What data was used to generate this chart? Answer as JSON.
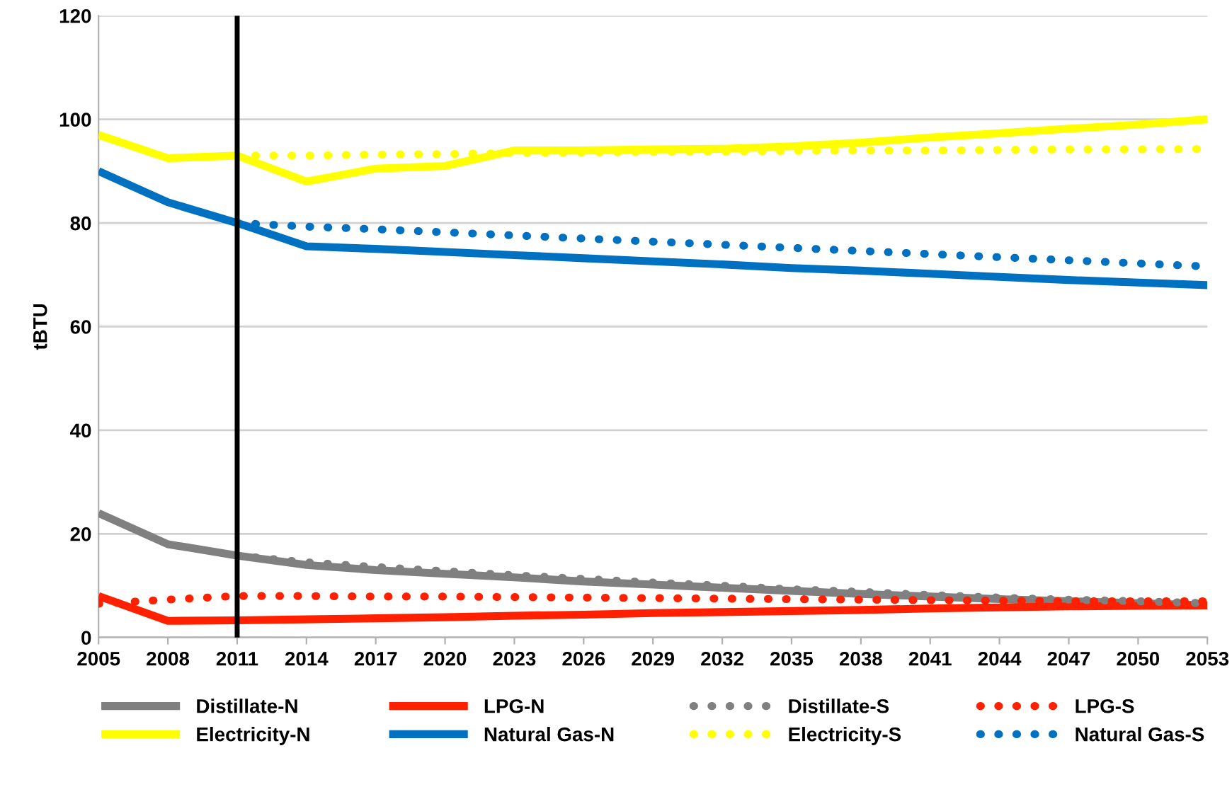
{
  "chart_data": {
    "type": "line",
    "ylabel": "tBTU",
    "x": [
      2005,
      2008,
      2011,
      2014,
      2017,
      2020,
      2023,
      2026,
      2029,
      2032,
      2035,
      2038,
      2041,
      2044,
      2047,
      2050,
      2053
    ],
    "xlim": [
      2005,
      2053
    ],
    "xticks": [
      2005,
      2008,
      2011,
      2014,
      2017,
      2020,
      2023,
      2026,
      2029,
      2032,
      2035,
      2038,
      2041,
      2044,
      2047,
      2050,
      2053
    ],
    "ylim": [
      0,
      120
    ],
    "yticks": [
      0,
      20,
      40,
      60,
      80,
      100,
      120
    ],
    "grid": "y",
    "legend": "bottom",
    "ref_lines": [
      {
        "axis": "x",
        "value": 2011,
        "color": "#000000",
        "line_style": "solid"
      }
    ],
    "series": [
      {
        "name": "Distillate-N",
        "color": "#808080",
        "line_style": "solid",
        "values": [
          24,
          18,
          15.8,
          14,
          13,
          12.3,
          11.6,
          10.8,
          10.2,
          9.6,
          9,
          8.4,
          7.9,
          7.4,
          7,
          6.6,
          6.2
        ]
      },
      {
        "name": "Electricity-N",
        "color": "#ffff00",
        "line_style": "solid",
        "values": [
          97,
          92.5,
          93,
          88,
          90.5,
          91,
          94,
          94,
          94.2,
          94.3,
          94.8,
          95.5,
          96.5,
          97.3,
          98.2,
          99,
          100
        ]
      },
      {
        "name": "LPG-N",
        "color": "#ff2000",
        "line_style": "solid",
        "values": [
          8,
          3.2,
          3.3,
          3.5,
          3.7,
          3.9,
          4.2,
          4.4,
          4.7,
          4.9,
          5.1,
          5.3,
          5.6,
          5.8,
          6,
          6.1,
          6.2
        ]
      },
      {
        "name": "Natural Gas-N",
        "color": "#0070c0",
        "line_style": "solid",
        "values": [
          90,
          84,
          80,
          75.5,
          75,
          74.4,
          73.8,
          73.2,
          72.6,
          72,
          71.3,
          70.8,
          70.2,
          69.6,
          69,
          68.5,
          68
        ]
      },
      {
        "name": "Distillate-S",
        "color": "#808080",
        "line_style": "dotted",
        "values": [
          null,
          null,
          15.8,
          14.5,
          13.6,
          12.8,
          12,
          11.3,
          10.6,
          10,
          9.3,
          8.8,
          8.2,
          7.7,
          7.3,
          7,
          6.6
        ]
      },
      {
        "name": "Electricity-S",
        "color": "#ffff00",
        "line_style": "dotted",
        "values": [
          null,
          null,
          93,
          93,
          93.2,
          93.3,
          93.5,
          93.6,
          93.7,
          93.8,
          93.9,
          94,
          94,
          94.1,
          94.2,
          94.2,
          94.3
        ]
      },
      {
        "name": "LPG-S",
        "color": "#ff2000",
        "line_style": "dotted",
        "values": [
          6.5,
          7.3,
          8,
          8,
          7.9,
          7.9,
          7.8,
          7.7,
          7.6,
          7.5,
          7.4,
          7.3,
          7.2,
          7.1,
          7.0,
          7.0,
          7.0
        ]
      },
      {
        "name": "Natural Gas-S",
        "color": "#0070c0",
        "line_style": "dotted",
        "values": [
          null,
          null,
          80,
          79.3,
          78.8,
          78.2,
          77.6,
          77,
          76.4,
          75.8,
          75.2,
          74.6,
          74,
          73.4,
          72.8,
          72.2,
          71.6
        ]
      }
    ]
  }
}
